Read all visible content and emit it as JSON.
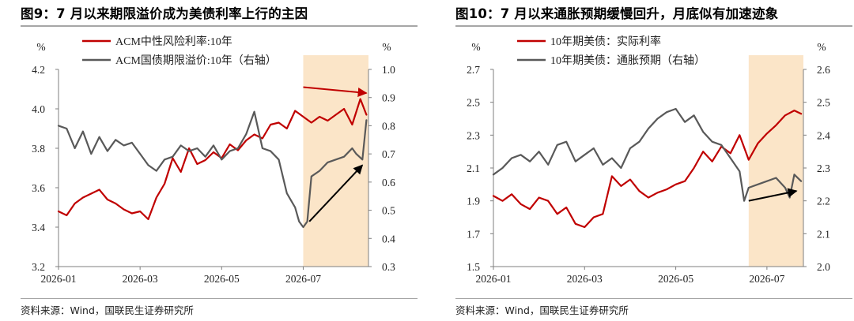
{
  "source_text": "资料来源：Wind，国联民生证券研究所",
  "colors": {
    "red": "#c00000",
    "gray": "#595959",
    "highlight": "#fbe5c8"
  },
  "chart_data": [
    {
      "type": "line",
      "title": "图9：7 月以来期限溢价成为美债利率上行的主因",
      "left_unit": "%",
      "right_unit": "%",
      "x_ticks": [
        "2026-01",
        "2026-03",
        "2026-05",
        "2026-07"
      ],
      "x_tick_months": [
        0,
        2,
        4,
        6
      ],
      "x_range_months": [
        0,
        7.6
      ],
      "ylim": [
        3.2,
        4.2
      ],
      "y_ticks": [
        "3.2",
        "3.4",
        "3.6",
        "3.8",
        "4.0",
        "4.2"
      ],
      "ylim_right": [
        0.3,
        1.0
      ],
      "y_ticks_right": [
        "0.3",
        "0.4",
        "0.5",
        "0.6",
        "0.7",
        "0.8",
        "0.9",
        "1.0"
      ],
      "highlight_months": [
        6.0,
        7.6
      ],
      "grid": false,
      "legend_position": "top-left",
      "series": [
        {
          "name": "ACM中性风险利率:10年",
          "axis": "left",
          "color": "#c00000",
          "x": [
            0,
            0.2,
            0.4,
            0.6,
            0.8,
            1.0,
            1.2,
            1.4,
            1.6,
            1.8,
            2.0,
            2.2,
            2.4,
            2.6,
            2.8,
            3.0,
            3.2,
            3.4,
            3.6,
            3.8,
            4.0,
            4.2,
            4.4,
            4.6,
            4.8,
            5.0,
            5.2,
            5.4,
            5.6,
            5.8,
            6.0,
            6.2,
            6.4,
            6.6,
            6.8,
            7.0,
            7.2,
            7.4,
            7.55
          ],
          "y": [
            3.48,
            3.46,
            3.52,
            3.55,
            3.57,
            3.59,
            3.54,
            3.52,
            3.49,
            3.47,
            3.48,
            3.44,
            3.55,
            3.62,
            3.75,
            3.68,
            3.8,
            3.72,
            3.74,
            3.78,
            3.75,
            3.82,
            3.79,
            3.84,
            3.87,
            3.85,
            3.92,
            3.93,
            3.9,
            3.99,
            3.96,
            3.93,
            3.96,
            3.94,
            3.97,
            4.0,
            3.92,
            4.05,
            3.97
          ]
        },
        {
          "name": "ACM国债期限溢价:10年（右轴）",
          "axis": "right",
          "color": "#595959",
          "x": [
            0,
            0.2,
            0.4,
            0.6,
            0.8,
            1.0,
            1.2,
            1.4,
            1.6,
            1.8,
            2.0,
            2.2,
            2.4,
            2.6,
            2.8,
            3.0,
            3.2,
            3.4,
            3.6,
            3.8,
            4.0,
            4.2,
            4.4,
            4.6,
            4.8,
            5.0,
            5.2,
            5.4,
            5.6,
            5.8,
            5.9,
            6.0,
            6.1,
            6.2,
            6.4,
            6.6,
            6.8,
            7.0,
            7.2,
            7.3,
            7.45,
            7.55
          ],
          "y": [
            0.8,
            0.79,
            0.72,
            0.78,
            0.7,
            0.76,
            0.71,
            0.75,
            0.73,
            0.74,
            0.7,
            0.66,
            0.64,
            0.68,
            0.69,
            0.73,
            0.71,
            0.72,
            0.69,
            0.73,
            0.68,
            0.71,
            0.72,
            0.77,
            0.85,
            0.72,
            0.71,
            0.68,
            0.56,
            0.51,
            0.46,
            0.44,
            0.46,
            0.62,
            0.64,
            0.67,
            0.68,
            0.69,
            0.72,
            0.7,
            0.68,
            0.82
          ]
        }
      ],
      "arrows": [
        {
          "axis": "left",
          "from": [
            6.0,
            4.11
          ],
          "to": [
            7.55,
            4.08
          ],
          "color": "#c00000"
        },
        {
          "axis": "right",
          "from": [
            6.15,
            0.46
          ],
          "to": [
            7.45,
            0.66
          ],
          "color": "#000000"
        }
      ]
    },
    {
      "type": "line",
      "title": "图10：7 月以来通胀预期缓慢回升，月底似有加速迹象",
      "left_unit": "%",
      "right_unit": "%",
      "x_ticks": [
        "2026-01",
        "2026-03",
        "2026-05",
        "2026-07"
      ],
      "x_tick_months": [
        0,
        2,
        4,
        6
      ],
      "x_range_months": [
        0,
        6.8
      ],
      "ylim": [
        1.5,
        2.7
      ],
      "y_ticks": [
        "1.5",
        "1.7",
        "1.9",
        "2.1",
        "2.3",
        "2.5",
        "2.7"
      ],
      "ylim_right": [
        2.0,
        2.6
      ],
      "y_ticks_right": [
        "2.0",
        "2.1",
        "2.2",
        "2.3",
        "2.4",
        "2.5",
        "2.6"
      ],
      "highlight_months": [
        5.6,
        6.8
      ],
      "grid": false,
      "legend_position": "top-left",
      "series": [
        {
          "name": "10年期美债：实际利率",
          "axis": "left",
          "color": "#c00000",
          "x": [
            0,
            0.2,
            0.4,
            0.6,
            0.8,
            1.0,
            1.2,
            1.4,
            1.6,
            1.8,
            2.0,
            2.2,
            2.4,
            2.6,
            2.8,
            3.0,
            3.2,
            3.4,
            3.6,
            3.8,
            4.0,
            4.2,
            4.4,
            4.6,
            4.8,
            5.0,
            5.2,
            5.4,
            5.6,
            5.8,
            6.0,
            6.2,
            6.4,
            6.6,
            6.75
          ],
          "y": [
            1.93,
            1.9,
            1.94,
            1.88,
            1.85,
            1.92,
            1.9,
            1.82,
            1.86,
            1.76,
            1.74,
            1.8,
            1.82,
            2.05,
            1.99,
            2.03,
            1.96,
            1.92,
            1.95,
            1.97,
            2.0,
            2.02,
            2.1,
            2.2,
            2.14,
            2.23,
            2.19,
            2.3,
            2.15,
            2.25,
            2.31,
            2.36,
            2.42,
            2.45,
            2.43
          ]
        },
        {
          "name": "10年期美债：通胀预期（右轴）",
          "axis": "right",
          "color": "#595959",
          "x": [
            0,
            0.2,
            0.4,
            0.6,
            0.8,
            1.0,
            1.2,
            1.4,
            1.6,
            1.8,
            2.0,
            2.2,
            2.4,
            2.6,
            2.8,
            3.0,
            3.2,
            3.4,
            3.6,
            3.8,
            4.0,
            4.2,
            4.4,
            4.6,
            4.8,
            5.0,
            5.2,
            5.4,
            5.5,
            5.6,
            5.8,
            6.0,
            6.2,
            6.4,
            6.5,
            6.6,
            6.75
          ],
          "y": [
            2.28,
            2.3,
            2.33,
            2.34,
            2.32,
            2.35,
            2.31,
            2.37,
            2.38,
            2.32,
            2.34,
            2.36,
            2.31,
            2.33,
            2.3,
            2.36,
            2.38,
            2.42,
            2.45,
            2.47,
            2.48,
            2.44,
            2.46,
            2.41,
            2.38,
            2.37,
            2.33,
            2.29,
            2.2,
            2.24,
            2.25,
            2.26,
            2.27,
            2.24,
            2.21,
            2.28,
            2.26
          ]
        }
      ],
      "arrows": [
        {
          "axis": "right",
          "from": [
            5.6,
            2.2
          ],
          "to": [
            6.65,
            2.23
          ],
          "color": "#000000"
        }
      ]
    }
  ]
}
